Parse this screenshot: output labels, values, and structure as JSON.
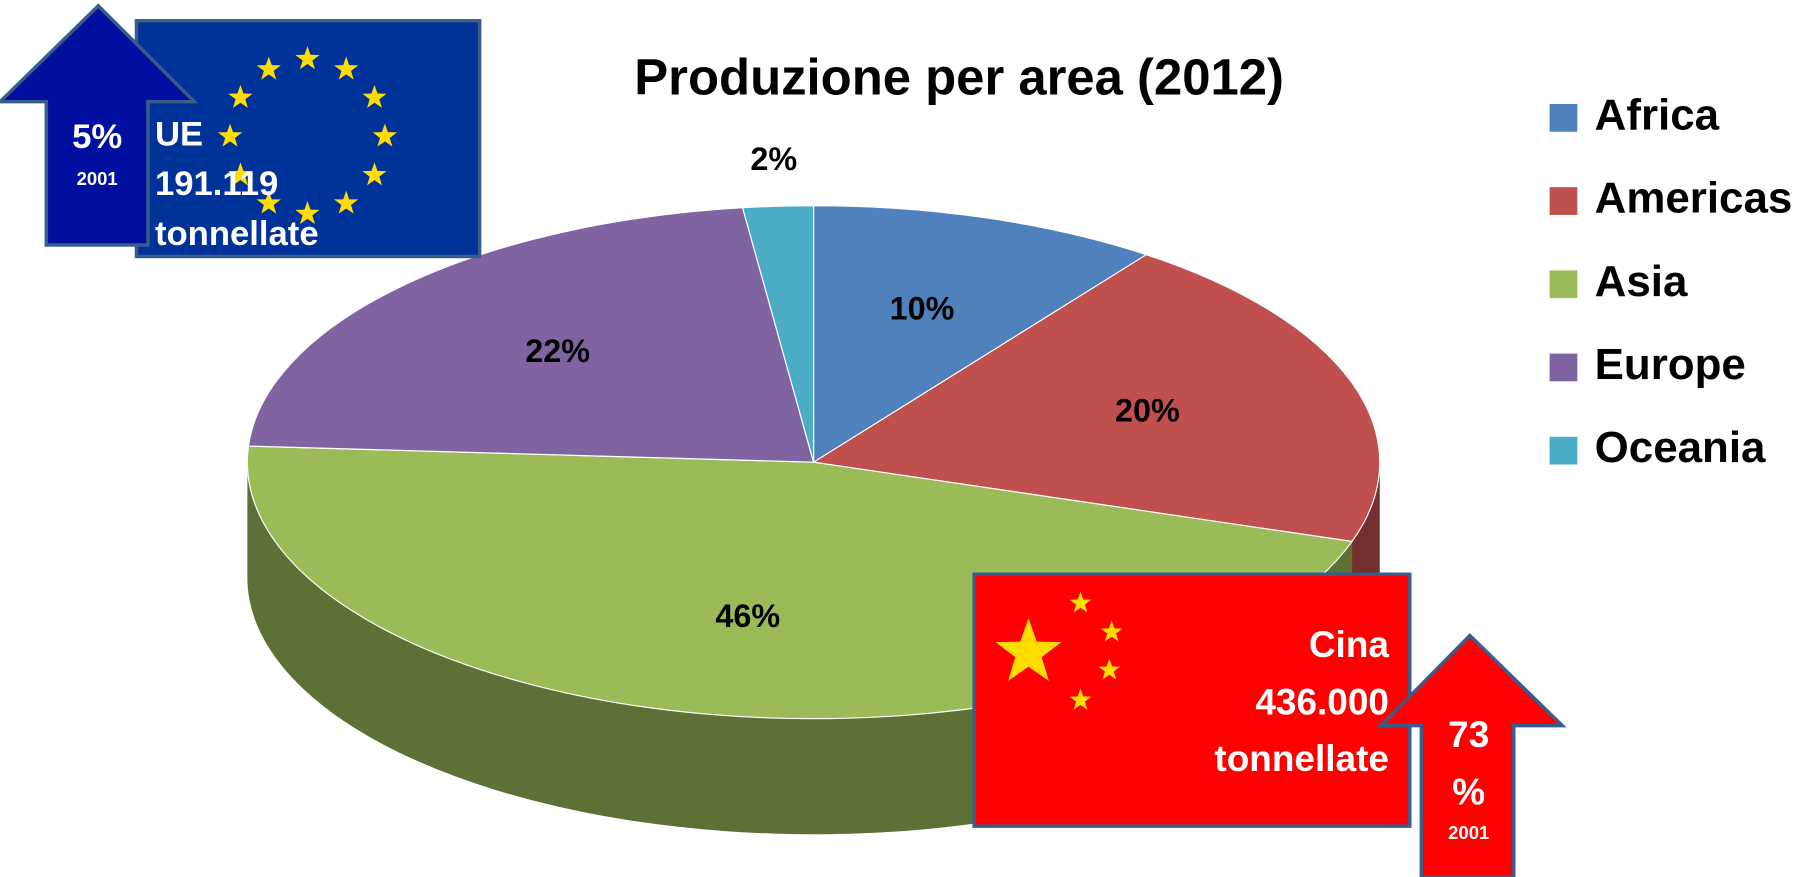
{
  "chart_data": {
    "type": "pie",
    "title": "Produzione per area (2012)",
    "categories": [
      "Africa",
      "Americas",
      "Asia",
      "Europe",
      "Oceania"
    ],
    "values": [
      10,
      20,
      46,
      22,
      2
    ],
    "value_labels": [
      "10%",
      "20%",
      "46%",
      "22%",
      "2%"
    ],
    "colors": [
      "#4f81bd",
      "#c0504d",
      "#9bbb59",
      "#8064a2",
      "#4bacc6"
    ],
    "legend": "right",
    "annotations": {
      "eu": {
        "change": "5%",
        "year": "2001",
        "lines": [
          "UE",
          "191.119",
          "tonnellate"
        ]
      },
      "china": {
        "lines": [
          "Cina",
          "436.000",
          "tonnellate"
        ],
        "change_lines": [
          "73",
          "%"
        ],
        "year": "2001"
      }
    }
  }
}
